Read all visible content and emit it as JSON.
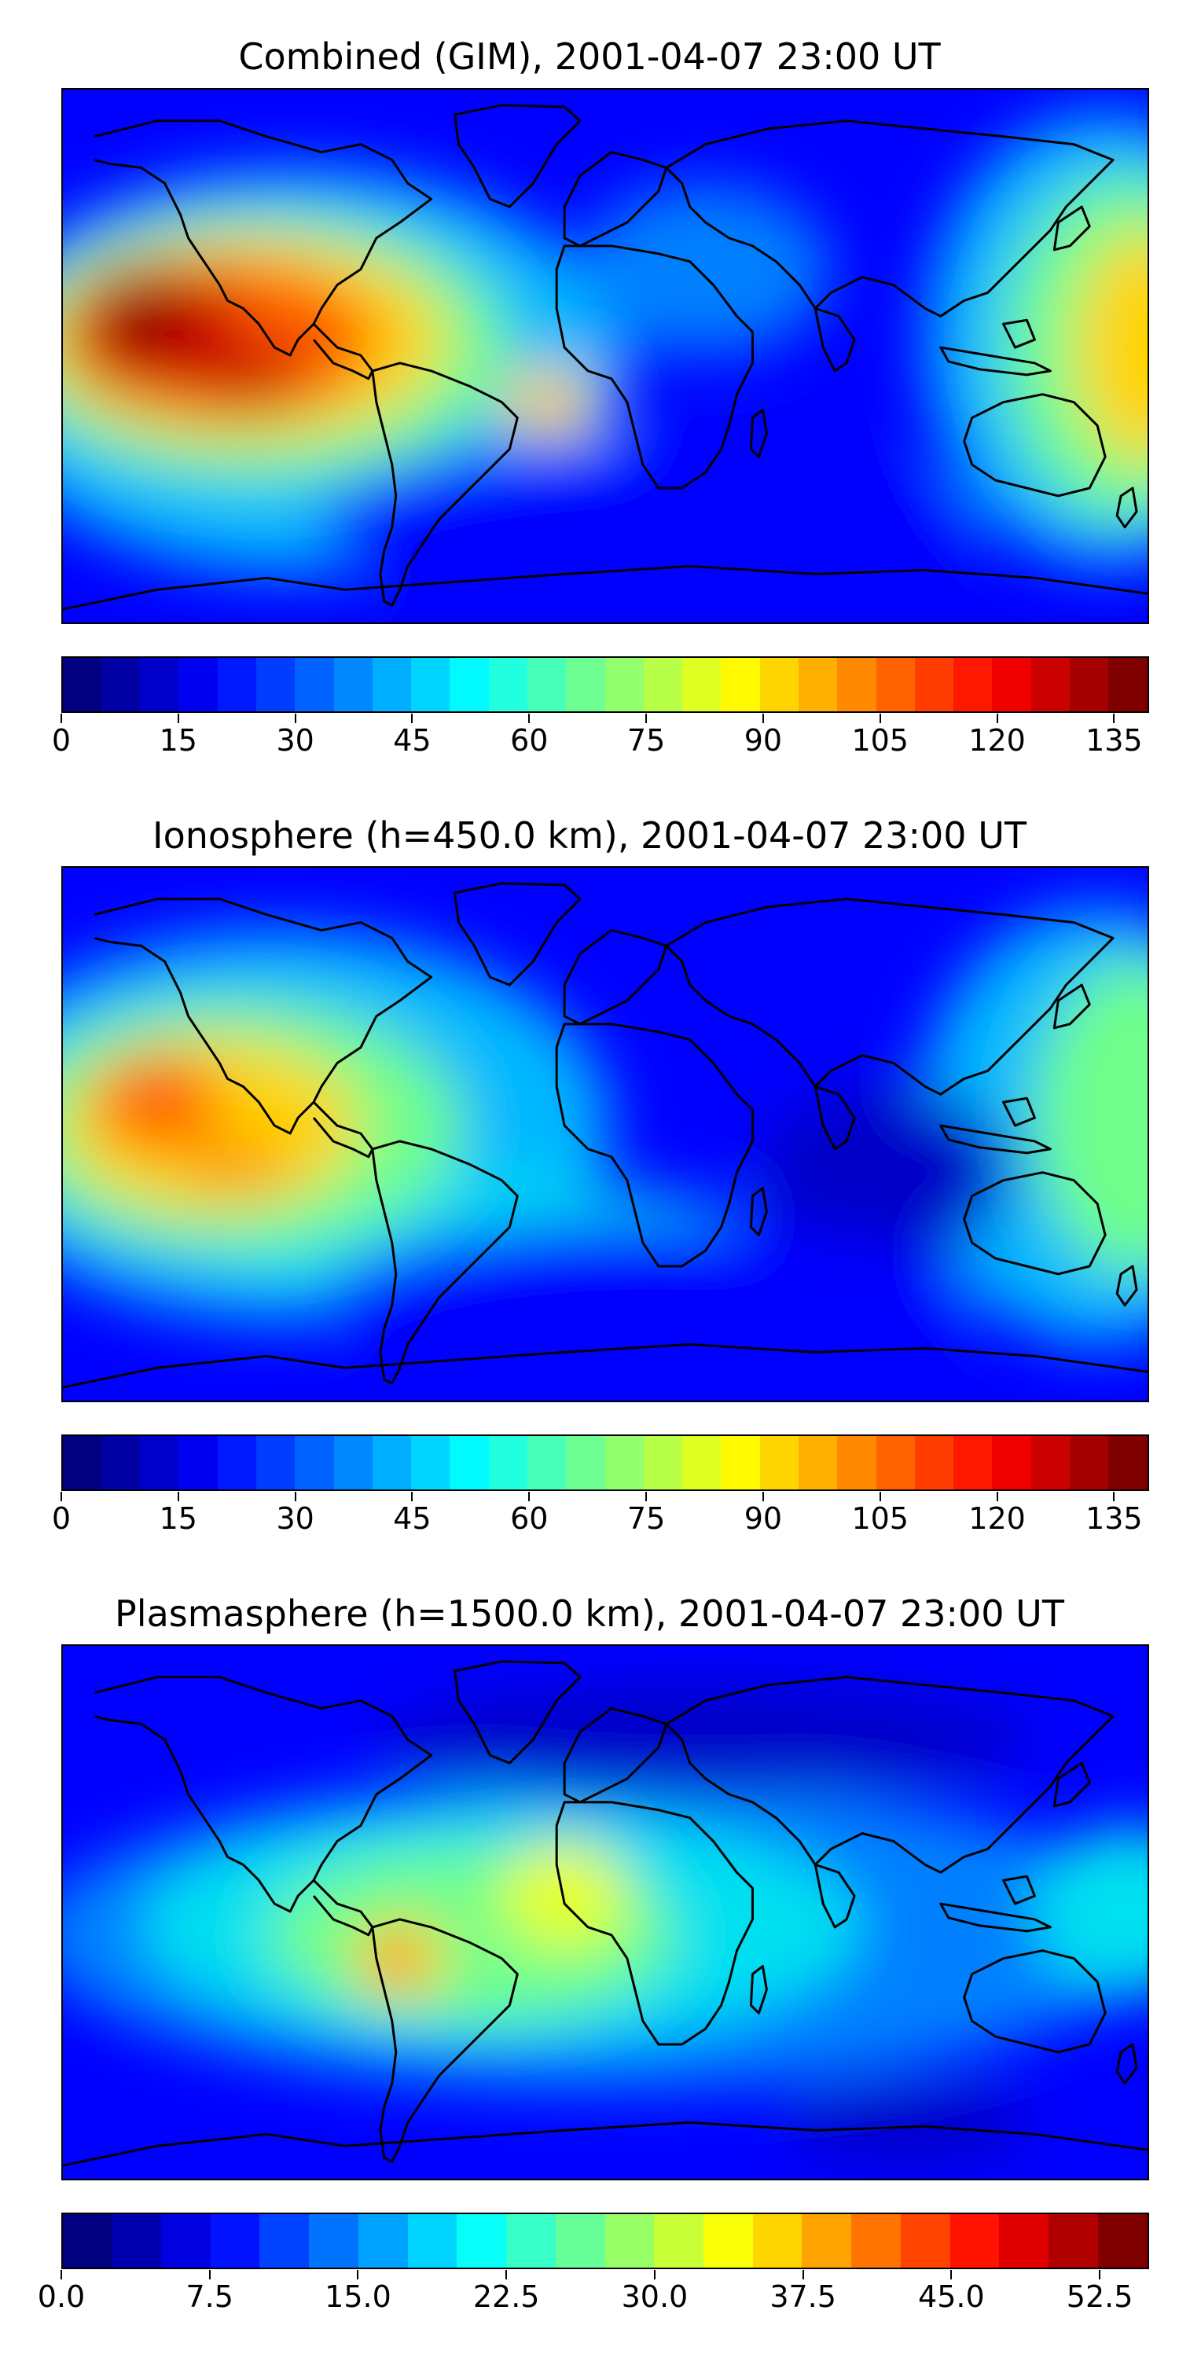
{
  "colormap": "jet",
  "colors": {
    "c0": "#00007f",
    "c1": "#0000c8",
    "c2": "#0000ff",
    "c3": "#0040ff",
    "c4": "#0080ff",
    "c5": "#00b8ff",
    "c6": "#00e0f0",
    "c7": "#30ffd0",
    "c8": "#70ff8a",
    "c9": "#b0ff47",
    "c10": "#e8ff14",
    "c11": "#ffd400",
    "c12": "#ff9500",
    "c13": "#ff5a00",
    "c14": "#ff1e00",
    "c15": "#c80000",
    "c16": "#7f0000",
    "coastline": "#000000"
  },
  "panels": [
    {
      "title": "Combined (GIM), 2001-04-07 23:00 UT",
      "colorbar": {
        "min": 0,
        "max": 139.5,
        "levels": 28,
        "ticks": [
          "0",
          "15",
          "30",
          "45",
          "60",
          "75",
          "90",
          "105",
          "120",
          "135"
        ],
        "tick_values": [
          0,
          15,
          30,
          45,
          60,
          75,
          90,
          105,
          120,
          135
        ]
      }
    },
    {
      "title": "Ionosphere  (h=450.0 km), 2001-04-07 23:00 UT",
      "colorbar": {
        "min": 0,
        "max": 139.5,
        "levels": 28,
        "ticks": [
          "0",
          "15",
          "30",
          "45",
          "60",
          "75",
          "90",
          "105",
          "120",
          "135"
        ],
        "tick_values": [
          0,
          15,
          30,
          45,
          60,
          75,
          90,
          105,
          120,
          135
        ]
      }
    },
    {
      "title": "Plasmasphere (h=1500.0 km), 2001-04-07 23:00 UT",
      "colorbar": {
        "min": 0,
        "max": 55,
        "levels": 22,
        "ticks": [
          "0.0",
          "7.5",
          "15.0",
          "22.5",
          "30.0",
          "37.5",
          "45.0",
          "52.5"
        ],
        "tick_values": [
          0,
          7.5,
          15,
          22.5,
          30,
          37.5,
          45,
          52.5
        ]
      }
    }
  ]
}
